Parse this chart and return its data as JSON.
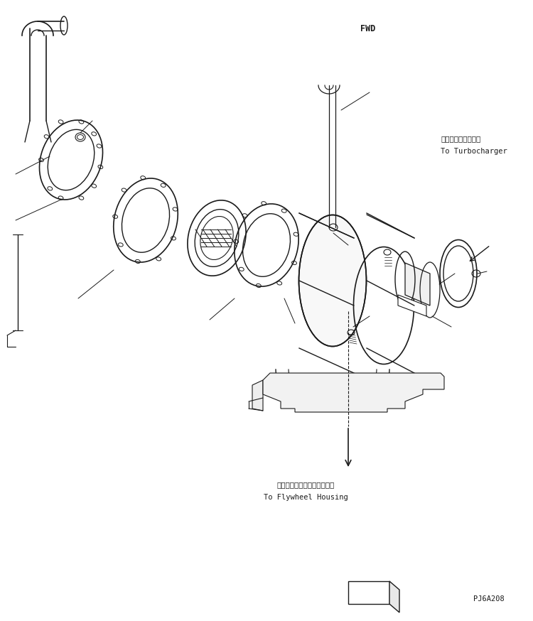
{
  "background_color": "#ffffff",
  "line_color": "#1a1a1a",
  "text_color": "#1a1a1a",
  "fig_width": 7.5,
  "fig_height": 8.74,
  "dpi": 100,
  "fwd_label": "FWD",
  "turbo_label_jp": "ターボチャージャへ",
  "turbo_label_en": "To Turbocharger",
  "flywheel_label_jp": "フライホイールハウジングへ",
  "flywheel_label_en": "To Flywheel Housing",
  "part_code": "PJ6A208"
}
